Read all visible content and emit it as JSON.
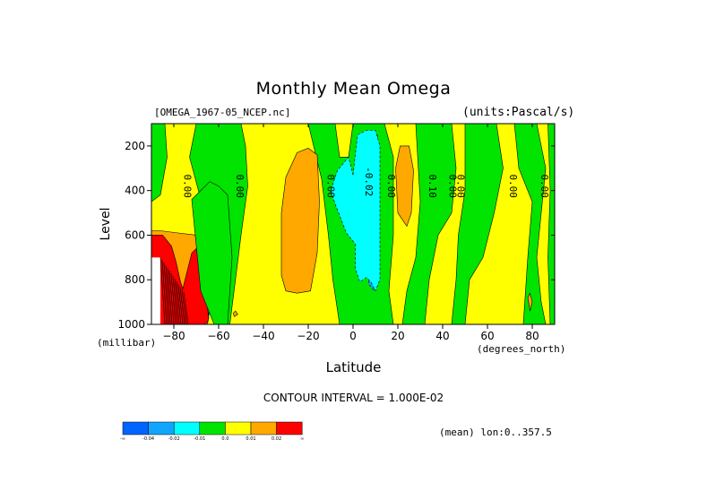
{
  "chart_data": {
    "type": "heatmap",
    "title": "Monthly Mean Omega",
    "file_label": "[OMEGA_1967-05_NCEP.nc]",
    "units_label": "(units:Pascal/s)",
    "xlabel": "Latitude",
    "x_unit": "(degrees_north)",
    "ylabel": "Level",
    "y_unit": "(millibar)",
    "xlim": [
      -90,
      90
    ],
    "ylim": [
      1000,
      100
    ],
    "x_ticks": [
      -80,
      -60,
      -40,
      -20,
      0,
      20,
      40,
      60,
      80
    ],
    "y_ticks": [
      200,
      400,
      600,
      800,
      1000
    ],
    "contour_interval_label": "CONTOUR INTERVAL = 1.000E-02",
    "mean_label": "(mean) lon:0..357.5",
    "legend": {
      "labels": [
        "-∞",
        "-0.04",
        "-0.02",
        "-0.01",
        "0.0",
        "0.01",
        "0.02",
        "∞"
      ],
      "colors": [
        "#0064ff",
        "#10a6ff",
        "#00ffff",
        "#00e400",
        "#ffff00",
        "#ffa800",
        "#ff0000"
      ]
    },
    "regions": [
      {
        "level": "blue",
        "lat": [
          4.5,
          7.5,
          11,
          11,
          9.5,
          7,
          6,
          4.5
        ],
        "lev": [
          170,
          140,
          150,
          520,
          850,
          820,
          550,
          320
        ]
      },
      {
        "level": "cyan",
        "lat": [
          0,
          2,
          6,
          10,
          12,
          12,
          12,
          10,
          8,
          6,
          3,
          1,
          1,
          -3,
          -8,
          -10,
          -7,
          -2,
          0
        ],
        "lev": [
          330,
          150,
          130,
          130,
          200,
          600,
          800,
          850,
          810,
          790,
          810,
          750,
          640,
          590,
          460,
          400,
          310,
          250,
          330
        ]
      },
      {
        "level": "cyan",
        "lat": [
          -65,
          -62,
          -60.5,
          -62,
          -65,
          -66.5
        ],
        "lev": [
          850,
          560,
          600,
          850,
          1000,
          960
        ]
      },
      {
        "level": "orange",
        "lat": [
          -30,
          -25,
          -20,
          -16,
          -15,
          -16,
          -19,
          -25,
          -30,
          -32,
          -32,
          -30
        ],
        "lev": [
          340,
          230,
          210,
          240,
          450,
          680,
          850,
          860,
          850,
          780,
          500,
          340
        ]
      },
      {
        "level": "orange",
        "lat": [
          19,
          21,
          25,
          27,
          26,
          24,
          20,
          19
        ],
        "lev": [
          300,
          200,
          200,
          310,
          500,
          560,
          500,
          300
        ]
      },
      {
        "level": "orange",
        "lat": [
          -90,
          -86,
          -78,
          -70,
          -64.5,
          -63.5,
          -65,
          -70,
          -82,
          -90
        ],
        "lev": [
          580,
          580,
          590,
          600,
          700,
          860,
          1000,
          1000,
          1000,
          1000
        ]
      },
      {
        "level": "red",
        "lat": [
          -90,
          -85,
          -81,
          -79,
          -77,
          -76,
          -72,
          -70,
          -66,
          -64.5,
          -66,
          -72,
          -90
        ],
        "lev": [
          600,
          600,
          650,
          720,
          810,
          840,
          680,
          660,
          800,
          980,
          1000,
          1000,
          1000
        ]
      },
      {
        "level": "green",
        "lat": [
          -72,
          -64,
          -60,
          -56,
          -54,
          -56,
          -58,
          -62,
          -68,
          -72
        ],
        "lev": [
          440,
          360,
          380,
          420,
          700,
          1000,
          1000,
          1000,
          850,
          440
        ]
      },
      {
        "level": "orange",
        "lat": [
          -53.5,
          -52.5,
          -51.5,
          -53
        ],
        "lev": [
          950,
          940,
          955,
          965
        ]
      },
      {
        "level": "orange",
        "lat": [
          78,
          79,
          80,
          79
        ],
        "lev": [
          880,
          860,
          900,
          940
        ]
      }
    ],
    "contour_labels": [
      {
        "text": "0.00",
        "lat": -75.5,
        "lev": 380
      },
      {
        "text": "0.00",
        "lat": -52,
        "lev": 380
      },
      {
        "text": "0.00",
        "lat": -11.5,
        "lev": 380
      },
      {
        "text": "-0.02",
        "lat": 5.5,
        "lev": 360
      },
      {
        "text": "0.00",
        "lat": 15.5,
        "lev": 380
      },
      {
        "text": "0.10",
        "lat": 34,
        "lev": 380
      },
      {
        "text": "0.00",
        "lat": 43,
        "lev": 380
      },
      {
        "text": "0.00",
        "lat": 46.5,
        "lev": 380
      },
      {
        "text": "0.00",
        "lat": 70,
        "lev": 380
      },
      {
        "text": "0.00",
        "lat": 84,
        "lev": 380
      }
    ]
  }
}
